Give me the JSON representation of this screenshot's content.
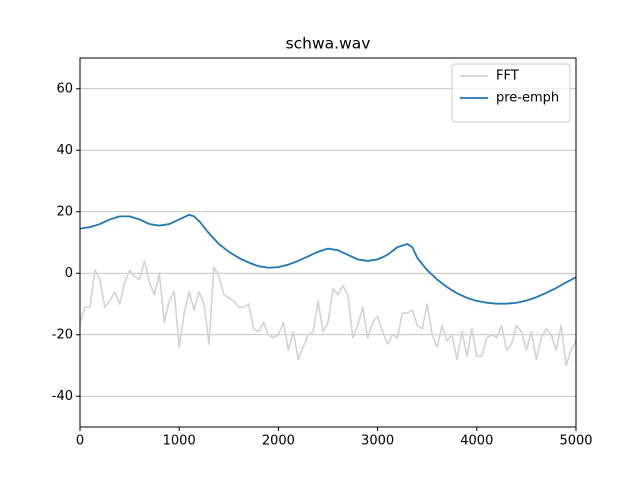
{
  "chart_data": {
    "type": "line",
    "title": "schwa.wav",
    "xlim": [
      0,
      5000
    ],
    "xticks": [
      0,
      1000,
      2000,
      3000,
      4000,
      5000
    ],
    "ylim": [
      -50,
      70
    ],
    "yticks": [
      -40,
      -20,
      0,
      20,
      40,
      60
    ],
    "grid": "y",
    "legend": "upper right",
    "series": [
      {
        "name": "FFT",
        "color": "#d3d3d3",
        "x": [
          0,
          50,
          100,
          150,
          200,
          250,
          300,
          350,
          400,
          450,
          500,
          550,
          600,
          650,
          700,
          750,
          800,
          850,
          900,
          950,
          1000,
          1050,
          1100,
          1150,
          1200,
          1250,
          1300,
          1350,
          1400,
          1450,
          1500,
          1550,
          1600,
          1650,
          1700,
          1750,
          1800,
          1850,
          1900,
          1950,
          2000,
          2050,
          2100,
          2150,
          2200,
          2250,
          2300,
          2350,
          2400,
          2450,
          2500,
          2550,
          2600,
          2650,
          2700,
          2750,
          2800,
          2850,
          2900,
          2950,
          3000,
          3050,
          3100,
          3150,
          3200,
          3250,
          3300,
          3350,
          3400,
          3450,
          3500,
          3550,
          3600,
          3650,
          3700,
          3750,
          3800,
          3850,
          3900,
          3950,
          4000,
          4050,
          4100,
          4150,
          4200,
          4250,
          4300,
          4350,
          4400,
          4450,
          4500,
          4550,
          4600,
          4650,
          4700,
          4750,
          4800,
          4850,
          4900,
          4950,
          5000
        ],
        "values": [
          -16,
          -11,
          -11,
          1,
          -2,
          -11,
          -9,
          -6,
          -10,
          -3,
          1,
          -1,
          -2,
          4,
          -3,
          -7,
          0,
          -16,
          -9,
          -6,
          -24,
          -13,
          -6,
          -12,
          -6,
          -10,
          -23,
          2,
          -1,
          -7,
          -8,
          -9,
          -11,
          -11,
          -10,
          -18,
          -19,
          -16,
          -20,
          -21,
          -20,
          -16,
          -25,
          -19,
          -28,
          -24,
          -20,
          -19,
          -9,
          -19,
          -16,
          -5,
          -7,
          -4,
          -7,
          -21,
          -17,
          -11,
          -21,
          -16,
          -14,
          -19,
          -23,
          -20,
          -21,
          -13,
          -13,
          -12,
          -17,
          -18,
          -10,
          -20,
          -24,
          -17,
          -22,
          -20,
          -28,
          -19,
          -27,
          -18,
          -27,
          -27,
          -21,
          -20,
          -21,
          -17,
          -25,
          -23,
          -17,
          -19,
          -25,
          -19,
          -28,
          -21,
          -18,
          -20,
          -25,
          -17,
          -30,
          -25,
          -22
        ]
      },
      {
        "name": "pre-emph",
        "color": "#1f77b4",
        "x": [
          0,
          100,
          200,
          300,
          400,
          500,
          600,
          700,
          800,
          900,
          1000,
          1100,
          1150,
          1200,
          1300,
          1400,
          1500,
          1600,
          1700,
          1800,
          1900,
          2000,
          2100,
          2200,
          2300,
          2400,
          2500,
          2600,
          2700,
          2800,
          2900,
          3000,
          3100,
          3200,
          3300,
          3350,
          3400,
          3500,
          3600,
          3700,
          3800,
          3900,
          4000,
          4100,
          4200,
          4300,
          4400,
          4500,
          4600,
          4700,
          4800,
          4900,
          5000
        ],
        "values": [
          14.5,
          15,
          16,
          17.5,
          18.5,
          18.5,
          17.5,
          16,
          15.5,
          16,
          17.5,
          19,
          18.5,
          17,
          13,
          9.5,
          7,
          5,
          3.5,
          2.3,
          1.8,
          2,
          2.8,
          4,
          5.5,
          7,
          8,
          7.5,
          6,
          4.5,
          4,
          4.5,
          6,
          8.5,
          9.5,
          8.5,
          5,
          1,
          -2,
          -4.5,
          -6.5,
          -8,
          -9,
          -9.6,
          -9.9,
          -9.9,
          -9.6,
          -8.9,
          -7.8,
          -6.4,
          -4.8,
          -3,
          -1.3
        ]
      }
    ]
  }
}
